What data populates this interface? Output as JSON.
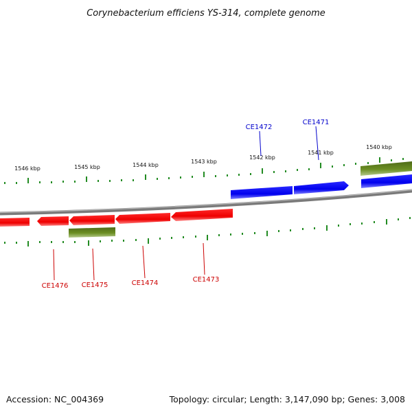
{
  "map": {
    "title": "Corynebacterium efficiens YS-314, complete genome",
    "accession_text": "Accession: NC_004369",
    "summary_text": "Topology: circular; Length: 3,147,090 bp; Genes: 3,008",
    "scale_labels": [
      "1546 kbp",
      "1545 kbp",
      "1544 kbp",
      "1543 kbp",
      "1542 kbp",
      "1541 kbp",
      "1540 kbp"
    ],
    "genes_forward": [
      {
        "label": "CE1472",
        "color": "#0000dd"
      },
      {
        "label": "CE1471",
        "color": "#0000dd"
      }
    ],
    "genes_reverse": [
      {
        "label": "CE1476",
        "color": "#dd0000"
      },
      {
        "label": "CE1475",
        "color": "#dd0000"
      },
      {
        "label": "CE1474",
        "color": "#dd0000"
      },
      {
        "label": "CE1473",
        "color": "#dd0000"
      }
    ],
    "colors": {
      "forward_gene": "#0000ee",
      "reverse_gene": "#ee0000",
      "rna_feature": "#6b8e23",
      "backbone": "#808080",
      "tick": "#228b22",
      "forward_label": "#0000cc",
      "reverse_label": "#cc0000"
    }
  }
}
